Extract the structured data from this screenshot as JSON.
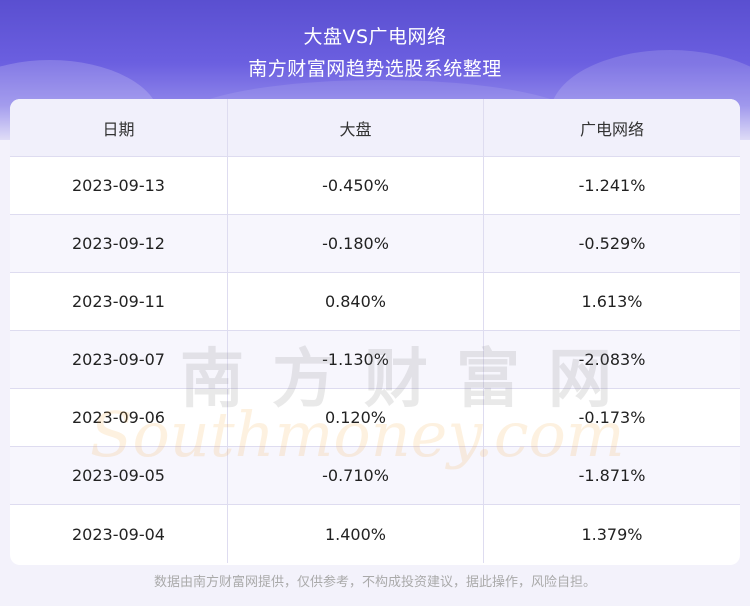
{
  "header": {
    "title_line1": "大盘VS广电网络",
    "title_line2": "南方财富网趋势选股系统整理"
  },
  "table": {
    "columns": [
      "日期",
      "大盘",
      "广电网络"
    ],
    "rows": [
      [
        "2023-09-13",
        "-0.450%",
        "-1.241%"
      ],
      [
        "2023-09-12",
        "-0.180%",
        "-0.529%"
      ],
      [
        "2023-09-11",
        "0.840%",
        "1.613%"
      ],
      [
        "2023-09-07",
        "-1.130%",
        "-2.083%"
      ],
      [
        "2023-09-06",
        "0.120%",
        "-0.173%"
      ],
      [
        "2023-09-05",
        "-0.710%",
        "-1.871%"
      ],
      [
        "2023-09-04",
        "1.400%",
        "1.379%"
      ]
    ]
  },
  "watermark": {
    "chinese": "南方财富网",
    "english": "Southmoney.com"
  },
  "footer": {
    "disclaimer": "数据由南方财富网提供，仅供参考，不构成投资建议，据此操作，风险自担。"
  }
}
